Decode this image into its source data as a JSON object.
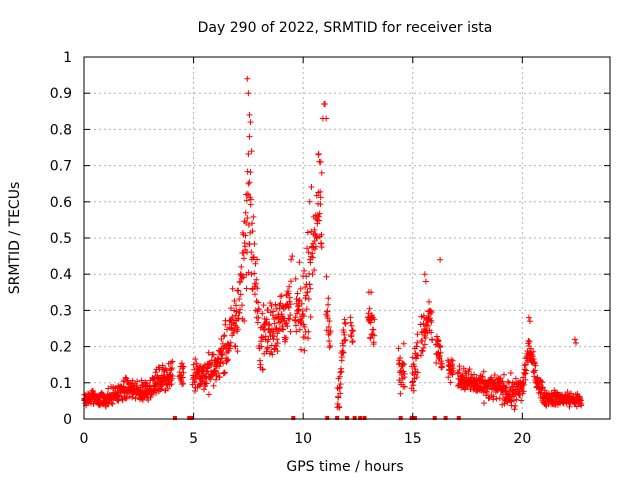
{
  "chart_data": {
    "type": "scatter",
    "title": "Day 290 of 2022, SRMTID for receiver ista",
    "xlabel": "GPS time / hours",
    "ylabel": "SRMTID / TECUs",
    "xlim": [
      0,
      24
    ],
    "ylim": [
      0,
      1
    ],
    "xticks": [
      0,
      5,
      10,
      15,
      20
    ],
    "xtick_labels": [
      "0",
      "5",
      "10",
      "15",
      "20"
    ],
    "yticks": [
      0,
      0.1,
      0.2,
      0.3,
      0.4,
      0.5,
      0.6,
      0.7,
      0.8,
      0.9,
      1
    ],
    "ytick_labels": [
      "0",
      "0.1",
      "0.2",
      "0.3",
      "0.4",
      "0.5",
      "0.6",
      "0.7",
      "0.8",
      "0.9",
      "1"
    ],
    "grid": true,
    "marker": "+",
    "color": "#ff0000",
    "profile": [
      [
        0,
        0.055
      ],
      [
        0.5,
        0.06
      ],
      [
        1,
        0.055
      ],
      [
        1.5,
        0.07
      ],
      [
        2,
        0.085
      ],
      [
        2.5,
        0.075
      ],
      [
        3,
        0.085
      ],
      [
        3.5,
        0.11
      ],
      [
        4,
        0.12
      ],
      [
        4.5,
        0.125
      ],
      [
        5,
        0.13
      ],
      [
        5.5,
        0.12
      ],
      [
        6,
        0.14
      ],
      [
        6.5,
        0.2
      ],
      [
        7,
        0.28
      ],
      [
        7.3,
        0.45
      ],
      [
        7.5,
        0.6
      ],
      [
        7.8,
        0.4
      ],
      [
        8,
        0.22
      ],
      [
        8.5,
        0.25
      ],
      [
        9,
        0.28
      ],
      [
        9.5,
        0.3
      ],
      [
        10,
        0.28
      ],
      [
        10.3,
        0.42
      ],
      [
        10.7,
        0.6
      ],
      [
        11,
        0.35
      ],
      [
        11.3,
        0.18
      ],
      [
        11.6,
        0.06
      ],
      [
        11.9,
        0.25
      ],
      [
        12.5,
        0.22
      ],
      [
        13,
        0.27
      ],
      [
        14.5,
        0.15
      ],
      [
        15,
        0.12
      ],
      [
        15.5,
        0.25
      ],
      [
        15.8,
        0.3
      ],
      [
        16,
        0.2
      ],
      [
        16.5,
        0.15
      ],
      [
        17,
        0.12
      ],
      [
        18,
        0.09
      ],
      [
        19,
        0.085
      ],
      [
        19.5,
        0.07
      ],
      [
        20,
        0.08
      ],
      [
        20.3,
        0.2
      ],
      [
        20.6,
        0.12
      ],
      [
        21,
        0.06
      ],
      [
        22,
        0.055
      ],
      [
        22.7,
        0.05
      ]
    ],
    "scatter_spread": [
      [
        0,
        0.02
      ],
      [
        3,
        0.03
      ],
      [
        6,
        0.05
      ],
      [
        7,
        0.1
      ],
      [
        7.5,
        0.18
      ],
      [
        8,
        0.09
      ],
      [
        9.5,
        0.08
      ],
      [
        10.5,
        0.14
      ],
      [
        11.2,
        0.06
      ],
      [
        12,
        0.04
      ],
      [
        13,
        0.05
      ],
      [
        15.5,
        0.06
      ],
      [
        16,
        0.05
      ],
      [
        17,
        0.03
      ],
      [
        20.3,
        0.04
      ],
      [
        21,
        0.02
      ],
      [
        22.7,
        0.02
      ]
    ],
    "coverage_gaps": [
      [
        4.05,
        4.35
      ],
      [
        4.55,
        4.95
      ],
      [
        9.45,
        9.62
      ],
      [
        10.85,
        11.05
      ],
      [
        11.25,
        11.55
      ],
      [
        11.95,
        12.15
      ],
      [
        12.28,
        12.95
      ],
      [
        13.25,
        14.35
      ],
      [
        14.65,
        14.95
      ],
      [
        15.25,
        15.35
      ],
      [
        15.9,
        16.05
      ],
      [
        16.35,
        16.6
      ],
      [
        16.85,
        17.05
      ],
      [
        22.7,
        24
      ]
    ],
    "zero_markers": [
      4.15,
      4.8,
      4.9,
      9.55,
      11.1,
      11.55,
      12.0,
      12.35,
      12.6,
      12.8,
      14.45,
      14.95,
      15.1,
      16.0,
      16.5,
      17.1
    ],
    "peaks": [
      [
        7.45,
        0.94
      ],
      [
        7.5,
        0.9
      ],
      [
        7.55,
        0.84
      ],
      [
        7.6,
        0.82
      ],
      [
        7.55,
        0.78
      ],
      [
        7.65,
        0.74
      ],
      [
        7.5,
        0.65
      ],
      [
        7.4,
        0.62
      ],
      [
        10.95,
        0.87
      ],
      [
        11.0,
        0.87
      ],
      [
        10.9,
        0.83
      ],
      [
        11.05,
        0.83
      ],
      [
        10.7,
        0.73
      ],
      [
        10.8,
        0.71
      ],
      [
        10.85,
        0.68
      ],
      [
        10.3,
        0.6
      ],
      [
        16.25,
        0.44
      ],
      [
        15.55,
        0.4
      ],
      [
        15.6,
        0.38
      ],
      [
        20.3,
        0.28
      ],
      [
        20.35,
        0.27
      ],
      [
        22.4,
        0.22
      ],
      [
        22.45,
        0.21
      ],
      [
        13.0,
        0.35
      ],
      [
        13.1,
        0.35
      ],
      [
        9.5,
        0.45
      ],
      [
        9.45,
        0.44
      ]
    ]
  }
}
